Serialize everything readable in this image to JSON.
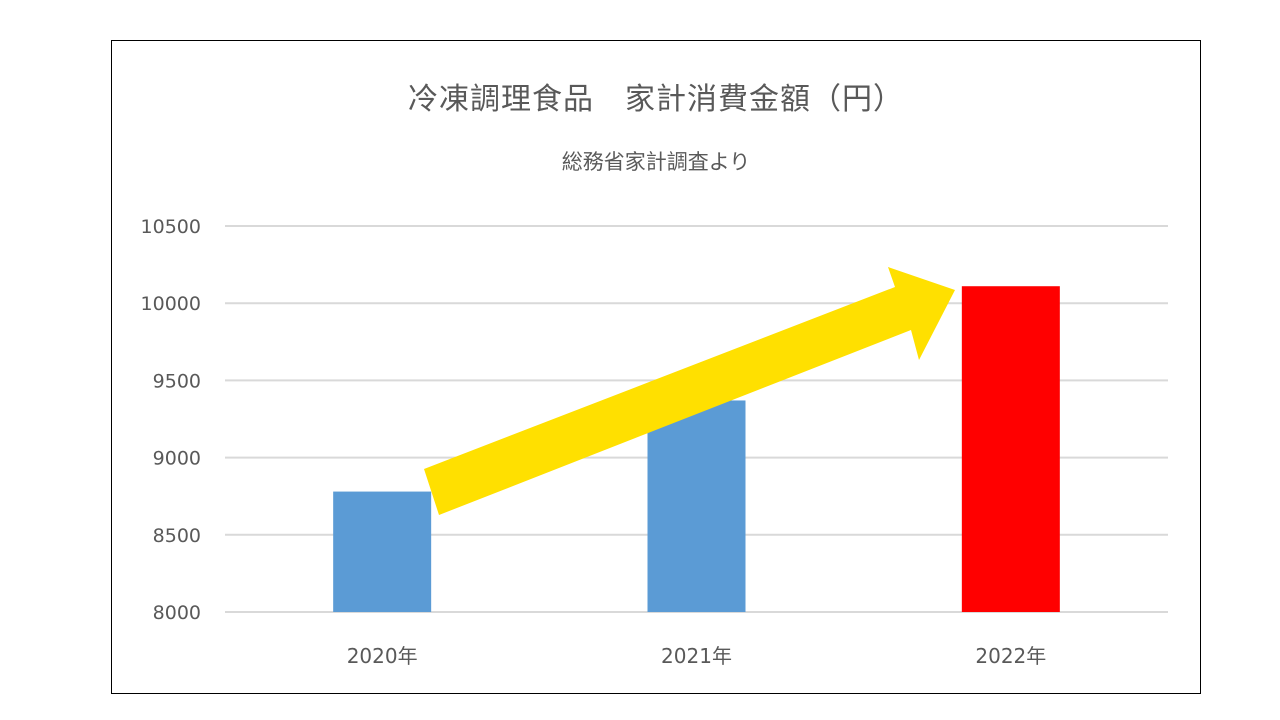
{
  "chart_data": {
    "type": "bar",
    "title": "冷凍調理食品　家計消費金額（円）",
    "subtitle": "総務省家計調査より",
    "categories": [
      "2020年",
      "2021年",
      "2022年"
    ],
    "values": [
      8780,
      9370,
      10110
    ],
    "bar_colors": [
      "#5B9BD5",
      "#5B9BD5",
      "#FF0000"
    ],
    "ylim": [
      8000,
      10500
    ],
    "yticks": [
      8000,
      8500,
      9000,
      9500,
      10000,
      10500
    ],
    "grid": true,
    "legend": "none",
    "annotation": {
      "type": "arrow",
      "color": "#FFE000",
      "from_category": "2020年",
      "to_category": "2022年",
      "meaning": "upward trend"
    }
  }
}
